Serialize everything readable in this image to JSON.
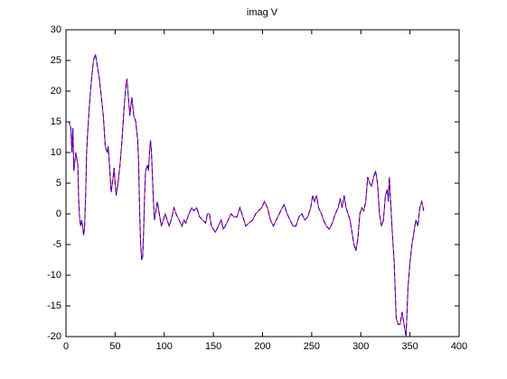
{
  "chart_data": {
    "type": "line",
    "title": "imag V",
    "x": [
      1,
      3,
      5,
      6,
      7,
      8,
      10,
      12,
      13,
      14,
      15,
      16,
      17,
      18,
      19,
      20,
      21,
      22,
      24,
      26,
      28,
      30,
      32,
      34,
      36,
      38,
      40,
      42,
      43,
      45,
      46,
      48,
      49,
      50,
      51,
      53,
      55,
      57,
      59,
      61,
      62,
      64,
      65,
      67,
      69,
      71,
      73,
      74,
      75,
      76,
      77,
      78,
      79,
      80,
      81,
      83,
      84,
      85,
      86,
      87,
      88,
      89,
      90,
      92,
      93,
      95,
      97,
      99,
      101,
      103,
      105,
      107,
      110,
      112,
      115,
      118,
      120,
      122,
      125,
      128,
      130,
      133,
      136,
      139,
      142,
      144,
      146,
      148,
      150,
      152,
      155,
      158,
      160,
      162,
      165,
      168,
      171,
      174,
      177,
      180,
      183,
      186,
      190,
      193,
      196,
      199,
      202,
      205,
      208,
      211,
      214,
      217,
      220,
      222,
      225,
      228,
      231,
      234,
      237,
      240,
      243,
      246,
      249,
      251,
      253,
      255,
      257,
      260,
      262,
      265,
      268,
      271,
      274,
      277,
      279,
      281,
      283,
      285,
      287,
      289,
      291,
      293,
      295,
      297,
      299,
      301,
      303,
      305,
      307,
      309,
      311,
      313,
      315,
      317,
      319,
      321,
      323,
      325,
      327,
      328,
      329,
      330,
      332,
      334,
      336,
      338,
      340,
      342,
      344,
      346,
      348,
      350,
      352,
      354,
      356,
      358,
      360,
      362,
      364
    ],
    "series": [
      {
        "color": "#ff0000",
        "dash": false,
        "values": [
          15,
          15,
          14,
          10,
          14,
          7,
          10,
          8,
          2,
          -1,
          -2,
          -1,
          -2,
          -3.5,
          -2,
          3,
          10,
          13,
          18,
          22,
          25,
          26,
          24,
          22,
          19,
          16,
          11,
          10,
          11,
          6,
          3.5,
          6,
          7.5,
          5,
          3,
          5,
          8,
          12,
          17,
          21,
          22,
          18,
          16,
          19,
          16,
          15,
          12,
          8,
          0,
          -5,
          -7.5,
          -7,
          -3,
          3,
          7,
          8,
          7,
          10,
          12,
          10,
          6,
          2,
          -1,
          1,
          2,
          0,
          -2,
          -1,
          0,
          -1,
          -2,
          -1,
          1,
          0,
          -1,
          -2,
          -1,
          -1.5,
          0,
          1,
          0.5,
          1,
          -0.5,
          -1,
          -1.5,
          0,
          0,
          -2,
          -2.5,
          -3,
          -2,
          -1,
          -2.5,
          -2,
          -1,
          0,
          -0.5,
          -0.5,
          1,
          -0.5,
          -2,
          -1.5,
          -1,
          0,
          0.5,
          1,
          2,
          1,
          -1,
          -2,
          -1,
          0,
          1,
          1.5,
          0,
          -1,
          -2,
          -2,
          -0.5,
          0,
          -1,
          -0.5,
          1,
          3,
          2,
          3,
          1,
          0,
          -1,
          -2,
          -2.5,
          -1.5,
          0,
          1,
          2.5,
          1,
          3,
          1,
          0,
          -1,
          -3,
          -5,
          -6,
          -4,
          0,
          1,
          0.5,
          2,
          6,
          5,
          4.5,
          6,
          7,
          5,
          0,
          -2,
          -1,
          3,
          4,
          2,
          6,
          3,
          -3,
          -8,
          -17,
          -18,
          -18,
          -16,
          -18,
          -20,
          -12,
          -8,
          -5,
          -3,
          -1,
          -2,
          1,
          2,
          0.5
        ]
      },
      {
        "color": "#0000ff",
        "dash": true,
        "values": [
          15,
          15,
          14,
          10,
          14,
          7,
          10,
          8,
          2,
          -1,
          -2,
          -1,
          -2,
          -3.5,
          -2,
          3,
          10,
          13,
          18,
          22,
          25,
          26,
          24,
          22,
          19,
          16,
          11,
          10,
          11,
          6,
          3.5,
          6,
          7.5,
          5,
          3,
          5,
          8,
          12,
          17,
          21,
          22,
          18,
          16,
          19,
          16,
          15,
          12,
          8,
          0,
          -5,
          -7.5,
          -7,
          -3,
          3,
          7,
          8,
          7,
          10,
          12,
          10,
          6,
          2,
          -1,
          1,
          2,
          0,
          -2,
          -1,
          0,
          -1,
          -2,
          -1,
          1,
          0,
          -1,
          -2,
          -1,
          -1.5,
          0,
          1,
          0.5,
          1,
          -0.5,
          -1,
          -1.5,
          0,
          0,
          -2,
          -2.5,
          -3,
          -2,
          -1,
          -2.5,
          -2,
          -1,
          0,
          -0.5,
          -0.5,
          1,
          -0.5,
          -2,
          -1.5,
          -1,
          0,
          0.5,
          1,
          2,
          1,
          -1,
          -2,
          -1,
          0,
          1,
          1.5,
          0,
          -1,
          -2,
          -2,
          -0.5,
          0,
          -1,
          -0.5,
          1,
          3,
          2,
          3,
          1,
          0,
          -1,
          -2,
          -2.5,
          -1.5,
          0,
          1,
          2.5,
          1,
          3,
          1,
          0,
          -1,
          -3,
          -5,
          -6,
          -4,
          0,
          1,
          0.5,
          2,
          6,
          5,
          4.5,
          6,
          7,
          5,
          0,
          -2,
          -1,
          3,
          4,
          2,
          6,
          3,
          -3,
          -8,
          -17,
          -18,
          -18,
          -16,
          -18,
          -20,
          -12,
          -8,
          -5,
          -3,
          -1,
          -2,
          1,
          2,
          0.5
        ]
      }
    ],
    "xlim": [
      0,
      400
    ],
    "xticks": [
      0,
      50,
      100,
      150,
      200,
      250,
      300,
      350,
      400
    ],
    "ylim": [
      -20,
      30
    ],
    "yticks": [
      -20,
      -15,
      -10,
      -5,
      0,
      5,
      10,
      15,
      20,
      25,
      30
    ],
    "grid": false
  }
}
